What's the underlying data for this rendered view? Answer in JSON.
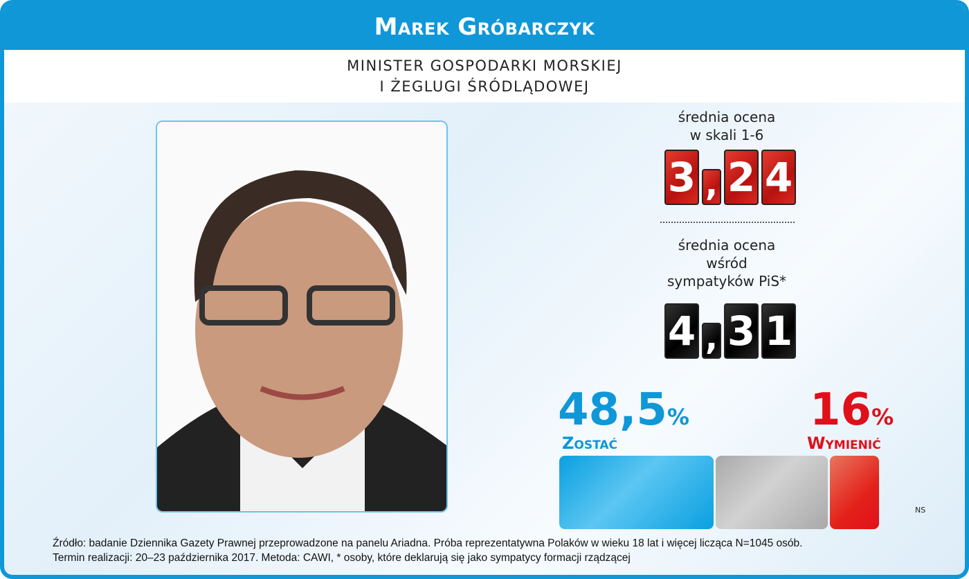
{
  "header": {
    "name": "Marek Gróbarczyk",
    "position_line1": "MINISTER GOSPODARKI MORSKIEJ",
    "position_line2": "I ŻEGLUGI ŚRÓDLĄDOWEJ"
  },
  "rating": {
    "label_line1": "średnia ocena",
    "label_line2": "w skali 1-6",
    "digits": [
      "3",
      ",",
      "2",
      "4"
    ],
    "value": 3.24,
    "color": "#c8161a"
  },
  "rating_pis": {
    "label_line1": "średnia ocena",
    "label_line2": "wśród",
    "label_line3": "sympatyków PiS*",
    "digits": [
      "4",
      ",",
      "3",
      "1"
    ],
    "value": 4.31,
    "color": "#000000"
  },
  "stay": {
    "value_text": "48,5",
    "percent_sign": "%",
    "label": "Zostać",
    "value": 48.5,
    "color": "#0f97d8"
  },
  "replace": {
    "value_text": "16",
    "percent_sign": "%",
    "label": "Wymienić",
    "value": 16,
    "color": "#e0101a"
  },
  "ns": {
    "label": "NS",
    "value": 35.5,
    "color": "#b5b5b5"
  },
  "footer": {
    "line1": "Źródło: badanie Dziennika Gazety Prawnej przeprowadzone na panelu Ariadna. Próba reprezentatywna Polaków w wieku 18 lat i więcej licząca N=1045 osób.",
    "line2": "Termin realizacji: 20–23 października 2017. Metoda: CAWI, * osoby, które deklarują się jako sympatycy formacji rządzącej"
  }
}
